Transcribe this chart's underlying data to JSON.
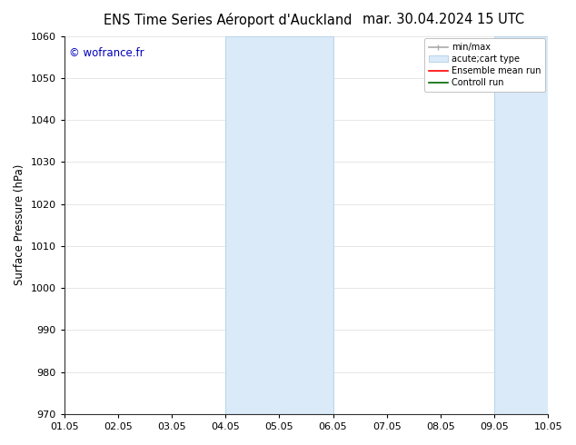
{
  "title_left": "ENS Time Series Aéroport d'Auckland",
  "title_right": "mar. 30.04.2024 15 UTC",
  "ylabel": "Surface Pressure (hPa)",
  "xlim_dates": [
    "01.05",
    "02.05",
    "03.05",
    "04.05",
    "05.05",
    "06.05",
    "07.05",
    "08.05",
    "09.05",
    "10.05"
  ],
  "ylim": [
    970,
    1060
  ],
  "yticks": [
    970,
    980,
    990,
    1000,
    1010,
    1020,
    1030,
    1040,
    1050,
    1060
  ],
  "watermark": "© wofrance.fr",
  "watermark_color": "#0000bb",
  "shaded_bands": [
    {
      "xstart": 3.0,
      "xend": 5.0
    },
    {
      "xstart": 8.0,
      "xend": 9.0
    }
  ],
  "band_color": "#daeaf8",
  "band_edge_color": "#b8d4ea",
  "legend_entries": [
    {
      "label": "min/max"
    },
    {
      "label": "acute;cart type"
    },
    {
      "label": "Ensemble mean run"
    },
    {
      "label": "Controll run"
    }
  ],
  "background_color": "#ffffff",
  "grid_color": "#dddddd",
  "title_fontsize": 10.5,
  "tick_fontsize": 8,
  "ylabel_fontsize": 8.5
}
